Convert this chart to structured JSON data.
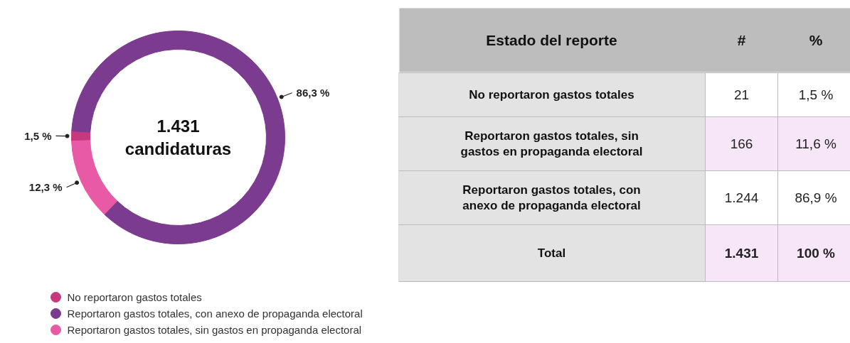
{
  "chart_data": [
    {
      "type": "donut",
      "categories": [
        "No reportaron gastos totales",
        "Reportaron gastos totales, con anexo de propaganda electoral",
        "Reportaron gastos totales, sin gastos en propaganda electoral"
      ],
      "values": [
        1.5,
        86.3,
        12.3
      ],
      "colors": [
        "#c8387f",
        "#7b3b8e",
        "#e95aa6"
      ],
      "value_labels": [
        "1,5 %",
        "86,3 %",
        "12,3 %"
      ],
      "annotations": [
        "1.431\ncandidaturas"
      ],
      "legend": "bottom"
    },
    {
      "type": "other",
      "title": "Estado del reporte",
      "categories": [
        "No reportaron gastos totales",
        "Reportaron gastos totales, sin gastos en propaganda electoral",
        "Reportaron gastos totales, con anexo de propaganda electoral",
        "Total"
      ],
      "series": [
        {
          "name": "#",
          "values": [
            21,
            166,
            1244,
            1431
          ],
          "value_labels": [
            "21",
            "166",
            "1.244",
            "1.431"
          ],
          "colors": [
            "#ffffff",
            "#f7e6f7",
            "#ffffff",
            "#f7e6f7"
          ]
        },
        {
          "name": "%",
          "values": [
            1.5,
            11.6,
            86.9,
            100
          ],
          "value_labels": [
            "1,5 %",
            "11,6 %",
            "86,9 %",
            "100 %"
          ],
          "colors": [
            "#ffffff",
            "#f7e6f7",
            "#ffffff",
            "#f7e6f7"
          ]
        }
      ]
    }
  ]
}
